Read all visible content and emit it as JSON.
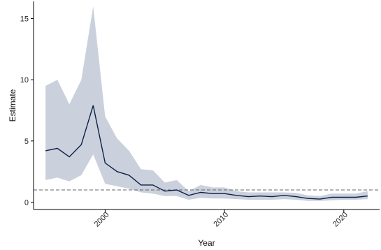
{
  "chart_data": {
    "type": "line",
    "xlabel": "Year",
    "ylabel": "Estimate",
    "xlim": [
      1994,
      2023
    ],
    "ylim": [
      -0.6,
      16.4
    ],
    "xticks": [
      2000,
      2010,
      2020
    ],
    "yticks": [
      0,
      5,
      10,
      15
    ],
    "x_tick_labels": [
      "2000",
      "2010",
      "2020"
    ],
    "y_tick_labels": [
      "0",
      "5",
      "10",
      "15"
    ],
    "reference_line": {
      "y": 1,
      "style": "dashed"
    },
    "grid": false,
    "legend": "none",
    "series": [
      {
        "x": [
          1995,
          1996,
          1997,
          1998,
          1999,
          2000,
          2001,
          2002,
          2003,
          2004,
          2005,
          2006,
          2007,
          2008,
          2009,
          2010,
          2011,
          2012,
          2013,
          2014,
          2015,
          2016,
          2017,
          2018,
          2019,
          2020,
          2021,
          2022
        ],
        "y": [
          4.2,
          4.4,
          3.7,
          4.7,
          7.9,
          3.2,
          2.5,
          2.2,
          1.4,
          1.4,
          0.9,
          1.0,
          0.55,
          0.8,
          0.7,
          0.7,
          0.55,
          0.45,
          0.5,
          0.45,
          0.55,
          0.45,
          0.3,
          0.25,
          0.4,
          0.4,
          0.4,
          0.5
        ],
        "lower": [
          1.8,
          2.0,
          1.7,
          2.2,
          3.9,
          1.5,
          1.3,
          1.1,
          0.8,
          0.7,
          0.5,
          0.5,
          0.2,
          0.35,
          0.3,
          0.3,
          0.25,
          0.2,
          0.2,
          0.2,
          0.25,
          0.2,
          0.1,
          0.1,
          0.15,
          0.2,
          0.2,
          0.25
        ],
        "upper": [
          9.5,
          10.0,
          8.0,
          10.0,
          16.0,
          7.0,
          5.2,
          4.2,
          2.7,
          2.6,
          1.6,
          1.8,
          0.9,
          1.4,
          1.2,
          1.2,
          0.9,
          0.8,
          0.8,
          0.8,
          0.8,
          0.75,
          0.55,
          0.5,
          0.7,
          0.7,
          0.7,
          0.9
        ]
      }
    ],
    "colors": {
      "line": "#0d1f4a",
      "band": "#cbd1dc",
      "reference": "#666666",
      "axis": "#000000"
    }
  }
}
